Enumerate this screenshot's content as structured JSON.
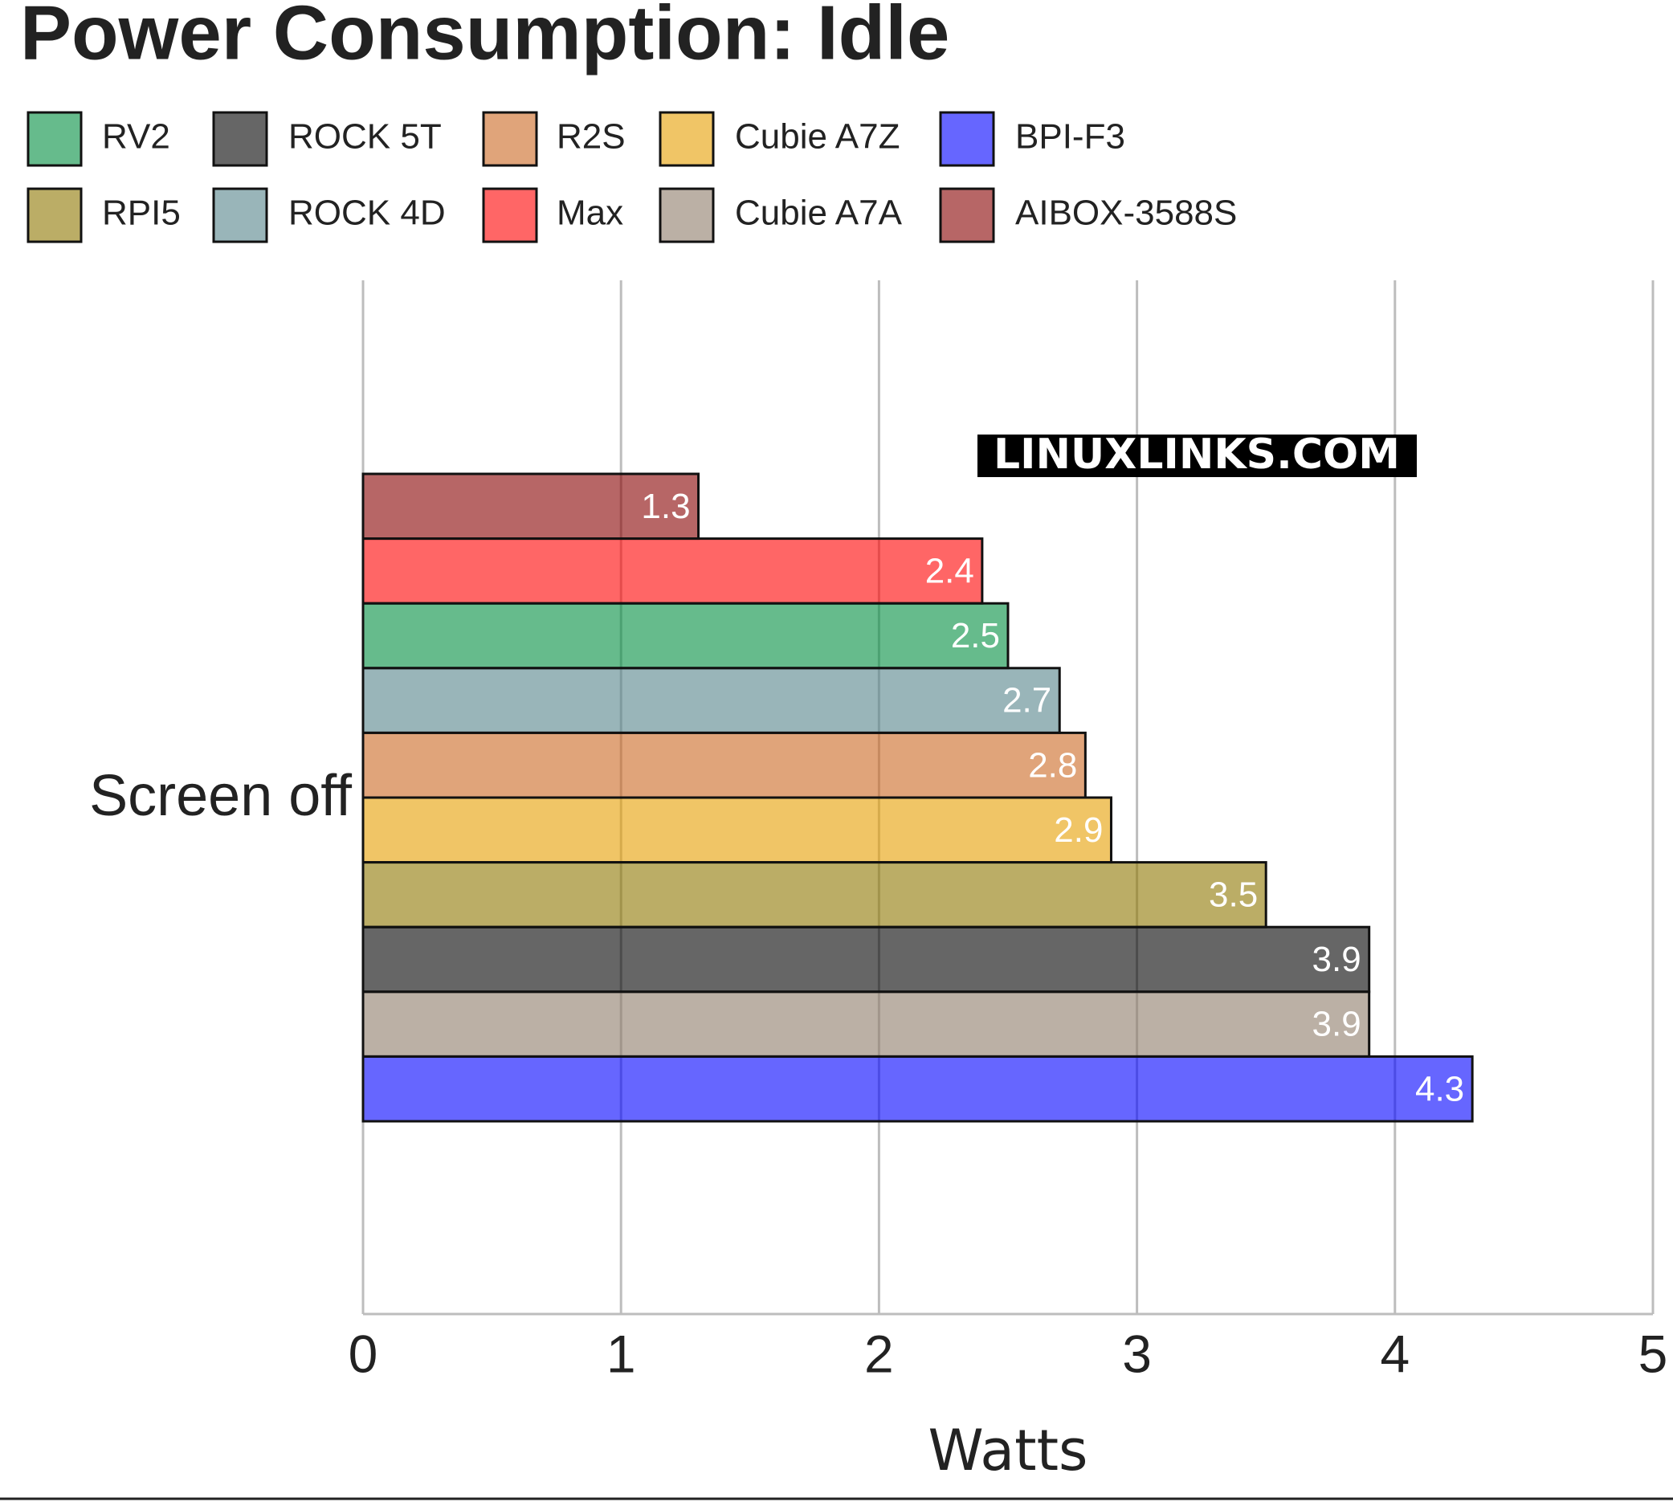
{
  "chart_data": {
    "type": "barh",
    "title": "Power Consumption: Idle",
    "watermark": "LINUXLINKS.COM",
    "categories": [
      "Screen off"
    ],
    "x_label": "Watts",
    "xlim": [
      0,
      5
    ],
    "xticks": [
      0,
      1,
      2,
      3,
      4,
      5
    ],
    "grid": true,
    "bar_opacity": 0.6,
    "series": [
      {
        "name": "AIBOX-3588S",
        "color": "#870000",
        "values": [
          1.3
        ]
      },
      {
        "name": "Max",
        "color": "#ff0000",
        "values": [
          2.4
        ]
      },
      {
        "name": "RV2",
        "color": "#008e3f",
        "values": [
          2.5
        ]
      },
      {
        "name": "ROCK 4D",
        "color": "#55848a",
        "values": [
          2.7
        ]
      },
      {
        "name": "R2S",
        "color": "#cb6721",
        "values": [
          2.8
        ]
      },
      {
        "name": "Cubie A7Z",
        "color": "#e69e00",
        "values": [
          2.9
        ]
      },
      {
        "name": "RPI5",
        "color": "#8e7600",
        "values": [
          3.5
        ]
      },
      {
        "name": "ROCK 5T",
        "color": "#000000",
        "values": [
          3.9
        ]
      },
      {
        "name": "Cubie A7A",
        "color": "#8e7c69",
        "values": [
          3.9
        ]
      },
      {
        "name": "BPI-F3",
        "color": "#0000ff",
        "values": [
          4.3
        ]
      }
    ]
  }
}
